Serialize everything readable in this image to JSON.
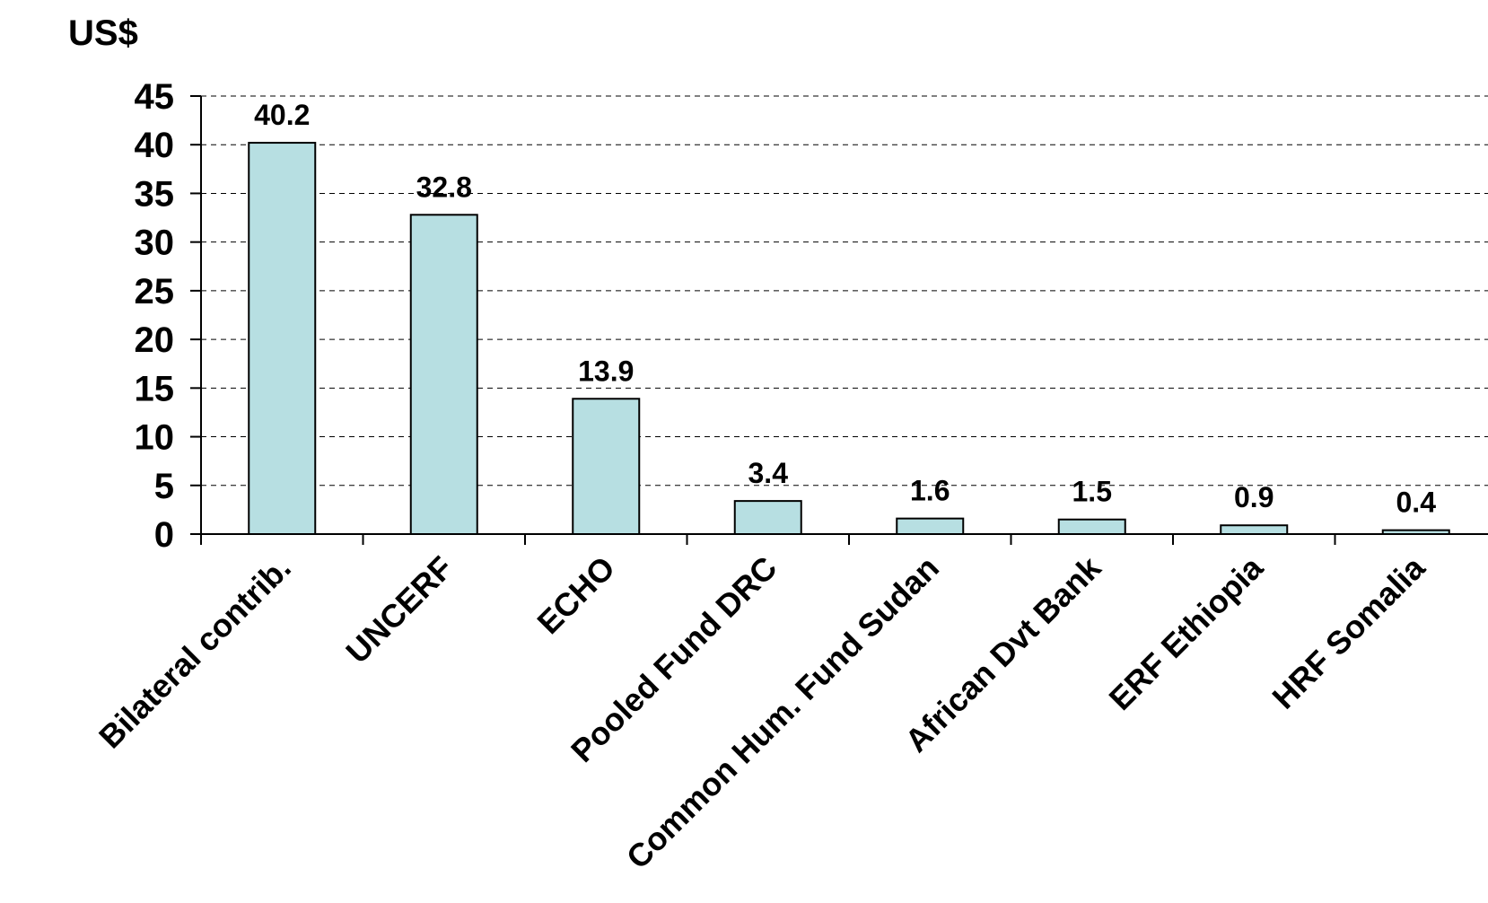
{
  "chart_data": {
    "type": "bar",
    "title": "",
    "ylabel": "US$",
    "xlabel": "",
    "categories": [
      "Bilateral contrib.",
      "UNCERF",
      "ECHO",
      "Pooled Fund DRC",
      "Common Hum. Fund Sudan",
      "African Dvt Bank",
      "ERF Ethiopia",
      "HRF Somalia"
    ],
    "values": [
      40.2,
      32.8,
      13.9,
      3.4,
      1.6,
      1.5,
      0.9,
      0.4
    ],
    "data_labels": [
      "40.2",
      "32.8",
      "13.9",
      "3.4",
      "1.6",
      "1.5",
      "0.9",
      "0.4"
    ],
    "ylim": [
      0,
      45
    ],
    "yticks": [
      0,
      5,
      10,
      15,
      20,
      25,
      30,
      35,
      40,
      45
    ],
    "grid": true,
    "legend": "none",
    "bar_color": "#b7dfe2",
    "bar_edge_color": "#000000"
  }
}
